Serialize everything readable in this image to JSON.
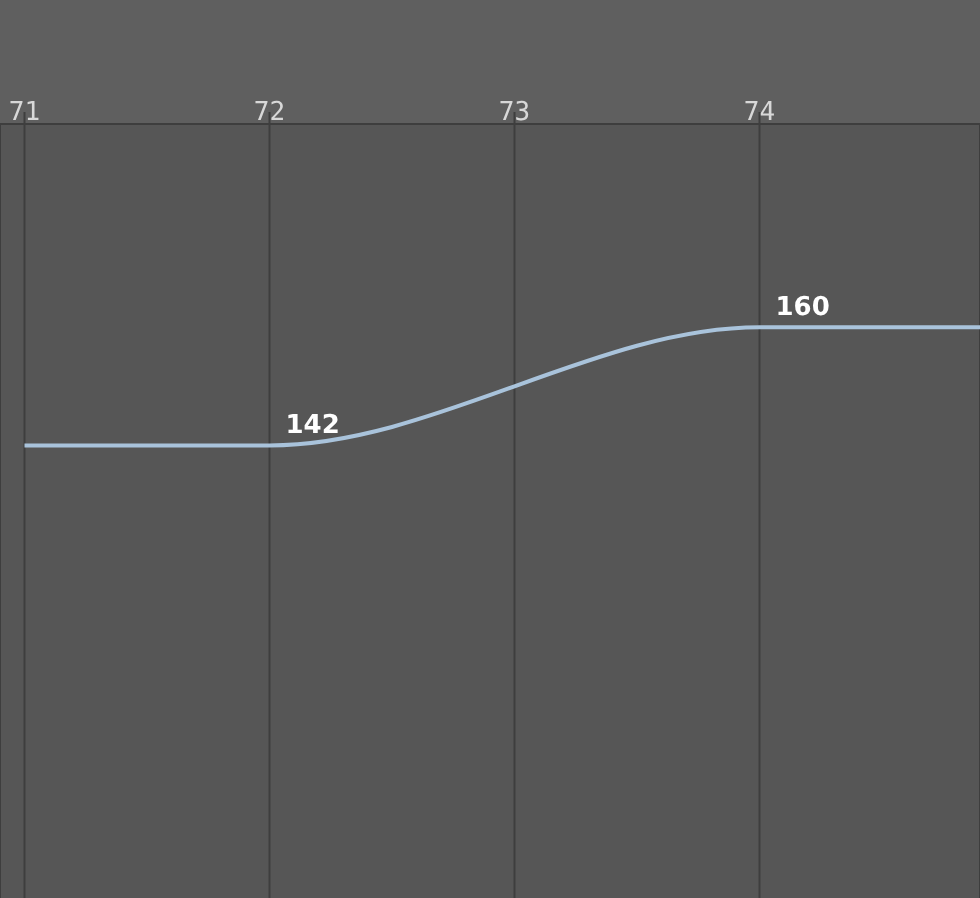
{
  "chart_data": {
    "type": "line",
    "x": [
      71,
      72,
      74,
      74.9
    ],
    "series": [
      {
        "color": "#a9c3db",
        "values": [
          142,
          142,
          160,
          160
        ],
        "value_labels": [
          null,
          "142",
          "160",
          null
        ]
      }
    ],
    "xlim": [
      70.9,
      74.9
    ],
    "xticks": [
      71,
      72,
      73,
      74
    ],
    "ylim": [
      73,
      191
    ],
    "grid": "x",
    "tick_labels": "x",
    "marker": "none"
  }
}
